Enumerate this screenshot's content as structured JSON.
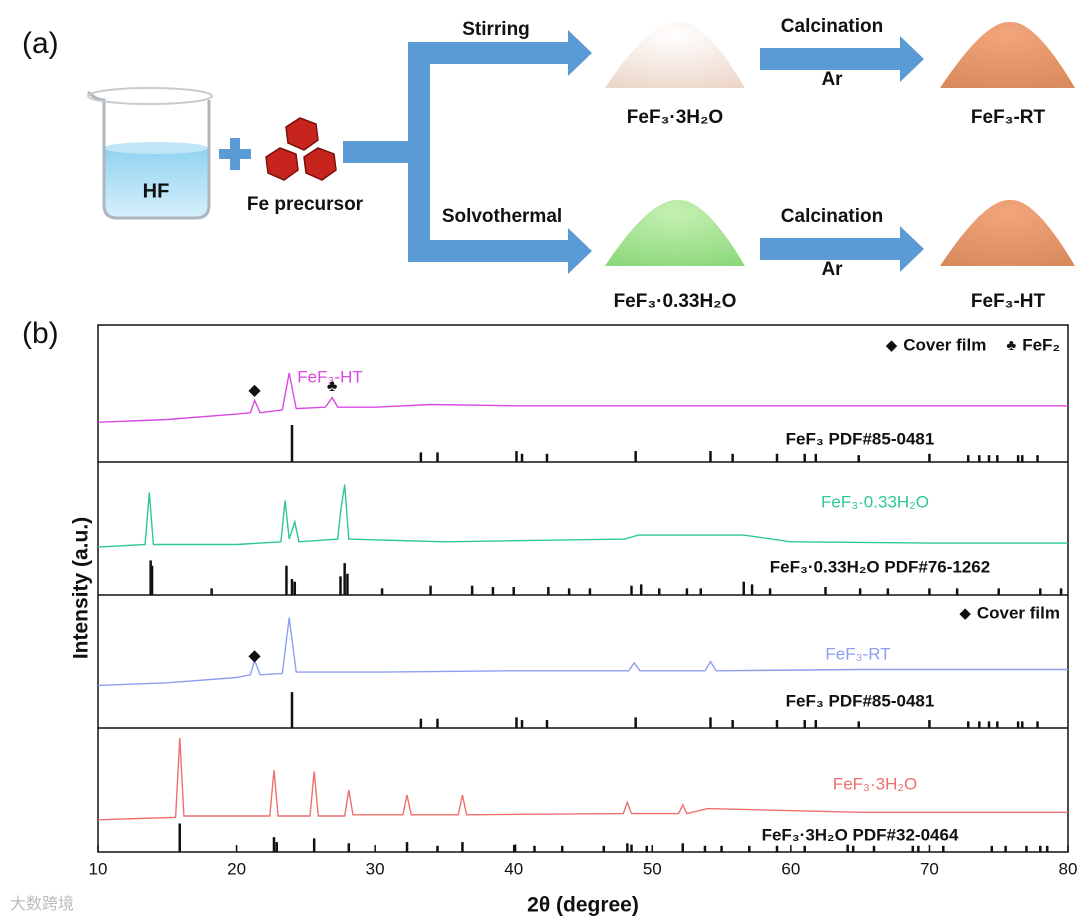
{
  "panel_a": {
    "label": "(a)",
    "beaker_label": "HF",
    "precursor_label": "Fe precursor",
    "route_top": "Stirring",
    "route_bottom": "Solvothermal",
    "calcination_top": "Calcination",
    "gas_top": "Ar",
    "calcination_bottom": "Calcination",
    "gas_bottom": "Ar",
    "product_top": "FeF₃·3H₂O",
    "product_bottom": "FeF₃·0.33H₂O",
    "final_top": "FeF₃-RT",
    "final_bottom": "FeF₃-HT"
  },
  "chart_data": {
    "type": "xrd_stack",
    "panel_label": "(b)",
    "xlabel": "2θ (degree)",
    "ylabel": "Intensity (a.u.)",
    "xlim": [
      10,
      80
    ],
    "xticks": [
      10,
      20,
      30,
      40,
      50,
      60,
      70,
      80
    ],
    "ylim": [
      0,
      100
    ],
    "panels": [
      {
        "name": "FeF₃-HT",
        "color": "#d94ae3",
        "x": [
          10,
          15,
          20,
          21,
          21.3,
          21.7,
          23.3,
          23.8,
          24.3,
          26.4,
          26.9,
          27.3,
          30,
          34,
          40,
          48,
          55,
          65,
          80
        ],
        "values": [
          29,
          31,
          35,
          36,
          45,
          36,
          38,
          65,
          39,
          40,
          47,
          40,
          40,
          42,
          41,
          41,
          41,
          41,
          41
        ],
        "markers": [
          {
            "symbol": "◆",
            "x": 21.3,
            "y": 52
          },
          {
            "symbol": "♣",
            "x": 26.9,
            "y": 55
          }
        ],
        "legend": [
          {
            "symbol": "◆",
            "label": "Cover film"
          },
          {
            "symbol": "♣",
            "label": "FeF₂"
          }
        ],
        "reference": {
          "name": "FeF₃ PDF#85-0481",
          "positions": [
            24.0,
            33.3,
            34.5,
            40.2,
            40.6,
            42.4,
            48.8,
            54.2,
            55.8,
            59.0,
            61.0,
            61.8,
            64.9,
            70.0,
            72.8,
            73.6,
            74.3,
            74.9,
            76.4,
            76.7,
            77.8
          ],
          "heights": [
            27,
            7,
            7,
            8,
            6,
            6,
            8,
            8,
            6,
            6,
            6,
            6,
            5,
            6,
            5,
            5,
            5,
            5,
            5,
            5,
            5
          ]
        }
      },
      {
        "name": "FeF₃·0.33H₂O",
        "color": "#2dc98f",
        "x": [
          10,
          13.4,
          13.7,
          14.0,
          20,
          23.2,
          23.5,
          23.8,
          24.2,
          24.5,
          27.3,
          27.5,
          27.8,
          28.1,
          35,
          48,
          49,
          56.6,
          60,
          70,
          80
        ],
        "values": [
          36,
          38,
          77,
          38,
          38,
          40,
          71,
          42,
          55,
          40,
          42,
          62,
          83,
          42,
          40,
          42,
          45,
          45,
          40,
          39,
          39
        ],
        "markers": [],
        "legend": [],
        "reference": {
          "name": "FeF₃·0.33H₂O PDF#76-1262",
          "positions": [
            13.8,
            13.9,
            18.2,
            23.6,
            24.0,
            24.2,
            27.5,
            27.8,
            28.0,
            30.5,
            34.0,
            37.0,
            38.5,
            40.0,
            42.5,
            44.0,
            45.5,
            48.5,
            49.2,
            50.5,
            52.5,
            53.5,
            56.6,
            57.2,
            58.5,
            62.5,
            65,
            67,
            70,
            72,
            75,
            78,
            79.5
          ],
          "heights": [
            26,
            22,
            5,
            22,
            12,
            10,
            14,
            24,
            16,
            5,
            7,
            7,
            6,
            6,
            6,
            5,
            5,
            7,
            8,
            5,
            5,
            5,
            10,
            8,
            5,
            6,
            5,
            5,
            5,
            5,
            5,
            5,
            5
          ]
        }
      },
      {
        "name": "FeF₃-RT",
        "color": "#8f9ff0",
        "x": [
          10,
          15,
          20,
          21,
          21.3,
          21.7,
          23.3,
          23.8,
          24.3,
          30,
          40,
          48.3,
          48.7,
          49.1,
          53.8,
          54.2,
          54.6,
          65,
          80
        ],
        "values": [
          32,
          34,
          38,
          40,
          51,
          40,
          41,
          83,
          42,
          42,
          43,
          43,
          49,
          43,
          43,
          50,
          43,
          44,
          44
        ],
        "markers": [
          {
            "symbol": "◆",
            "x": 21.3,
            "y": 54
          }
        ],
        "legend": [
          {
            "symbol": "◆",
            "label": "Cover film"
          }
        ],
        "reference": {
          "name": "FeF₃ PDF#85-0481",
          "positions": [
            24.0,
            33.3,
            34.5,
            40.2,
            40.6,
            42.4,
            48.8,
            54.2,
            55.8,
            59.0,
            61.0,
            61.8,
            64.9,
            70.0,
            72.8,
            73.6,
            74.3,
            74.9,
            76.4,
            76.7,
            77.8
          ],
          "heights": [
            27,
            7,
            7,
            8,
            6,
            6,
            8,
            8,
            6,
            6,
            6,
            6,
            5,
            6,
            5,
            5,
            5,
            5,
            5,
            5,
            5
          ]
        }
      },
      {
        "name": "FeF₃·3H₂O",
        "color": "#ef6f6f",
        "x": [
          10,
          15.6,
          15.9,
          16.2,
          22.4,
          22.7,
          23.0,
          25.3,
          25.6,
          25.9,
          27.8,
          28.1,
          28.4,
          32.0,
          32.3,
          32.6,
          36.0,
          36.3,
          36.6,
          47.9,
          48.2,
          48.5,
          51.9,
          52.2,
          52.5,
          54,
          65,
          80
        ],
        "values": [
          26,
          28,
          92,
          29,
          29,
          66,
          29,
          29,
          65,
          29,
          29,
          50,
          30,
          30,
          46,
          30,
          30,
          46,
          30,
          31,
          40,
          31,
          31,
          38,
          31,
          35,
          32,
          32
        ],
        "markers": [],
        "legend": [],
        "reference": {
          "name": "FeF₃·3H₂O PDF#32-0464",
          "positions": [
            15.9,
            22.7,
            22.9,
            25.6,
            28.1,
            32.3,
            34.5,
            36.3,
            40.1,
            41.5,
            43.5,
            46.5,
            48.2,
            48.5,
            49.6,
            52.2,
            53.8,
            55,
            57,
            59,
            61,
            64.1,
            64.5,
            66,
            68.8,
            69.2,
            71,
            74.5,
            75.5,
            77,
            78,
            78.5
          ],
          "heights": [
            23,
            12,
            8,
            11,
            7,
            8,
            5,
            8,
            6,
            5,
            5,
            5,
            7,
            6,
            5,
            7,
            5,
            5,
            5,
            5,
            5,
            6,
            5,
            5,
            5,
            5,
            5,
            5,
            5,
            5,
            5,
            5
          ]
        }
      }
    ]
  },
  "watermark": "大数跨境"
}
